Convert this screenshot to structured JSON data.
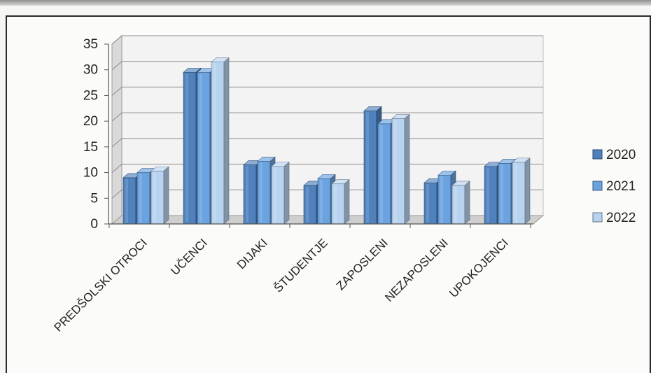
{
  "chart_data": {
    "type": "bar",
    "style": "3d-clustered-column",
    "categories": [
      "PREDŠOLSKI OTROCI",
      "UČENCI",
      "DIJAKI",
      "ŠTUDENTJE",
      "ZAPOSLENI",
      "NEZAPOSLENI",
      "UPOKOJENCI"
    ],
    "series": [
      {
        "name": "2020",
        "color": "#4f81bd",
        "values": [
          9,
          29.5,
          11.5,
          7.5,
          22,
          8,
          11.2
        ]
      },
      {
        "name": "2021",
        "color": "#6aa3e0",
        "values": [
          10,
          29.5,
          12.2,
          8.8,
          19.5,
          9.5,
          11.8
        ]
      },
      {
        "name": "2022",
        "color": "#b8d3ef",
        "values": [
          10.3,
          31.5,
          11.2,
          7.8,
          20.5,
          7.5,
          12
        ]
      }
    ],
    "yticks": [
      0,
      5,
      10,
      15,
      20,
      25,
      30,
      35
    ],
    "ylim": [
      0,
      35
    ],
    "grid": true,
    "legend_position": "right"
  }
}
